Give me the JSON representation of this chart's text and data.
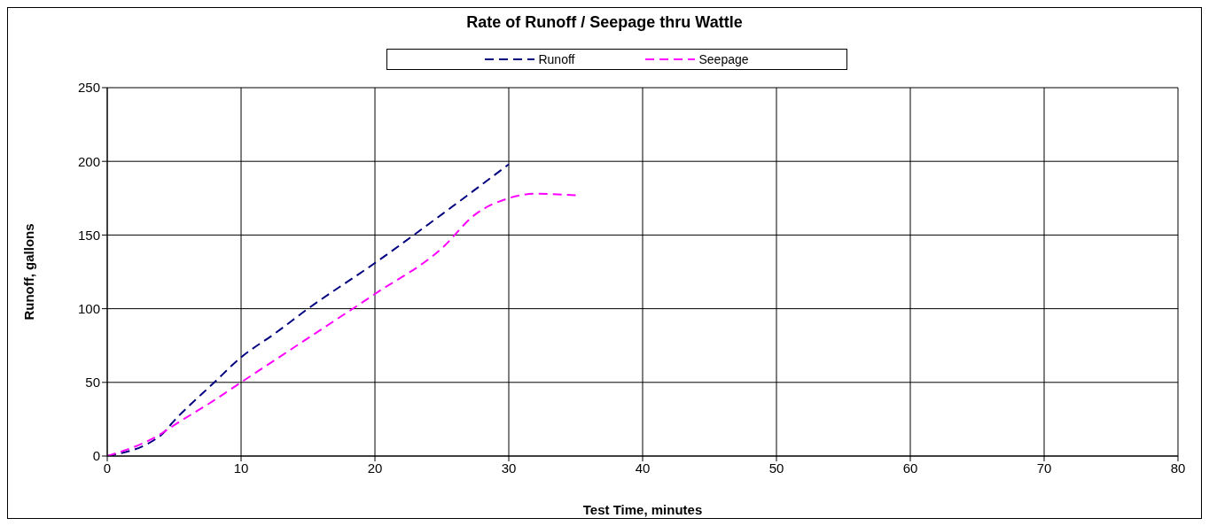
{
  "chart_data": {
    "type": "line",
    "title": "Rate of Runoff / Seepage thru Wattle",
    "xlabel": "Test Time, minutes",
    "ylabel": "Runoff, gallons",
    "xlim": [
      0,
      80
    ],
    "xticks": [
      0,
      10,
      20,
      30,
      40,
      50,
      60,
      70,
      80
    ],
    "ylim": [
      0,
      250
    ],
    "yticks": [
      0,
      50,
      100,
      150,
      200,
      250
    ],
    "grid": true,
    "legend": "top",
    "line_style": "dashed",
    "marker": "none",
    "series": [
      {
        "name": "Runoff",
        "color": "#000080",
        "x": [
          0,
          4,
          5,
          8,
          10,
          12.5,
          15,
          20,
          25,
          30
        ],
        "values": [
          0,
          14,
          24,
          50,
          67,
          83,
          100,
          131,
          164,
          198
        ]
      },
      {
        "name": "Seepage",
        "color": "#ff00ff",
        "x": [
          0,
          4,
          5,
          7.5,
          10,
          15,
          20,
          25,
          27.5,
          30,
          32,
          35
        ],
        "values": [
          0,
          15,
          21,
          35,
          50,
          80,
          110,
          141,
          164,
          175,
          178,
          177
        ]
      }
    ]
  }
}
